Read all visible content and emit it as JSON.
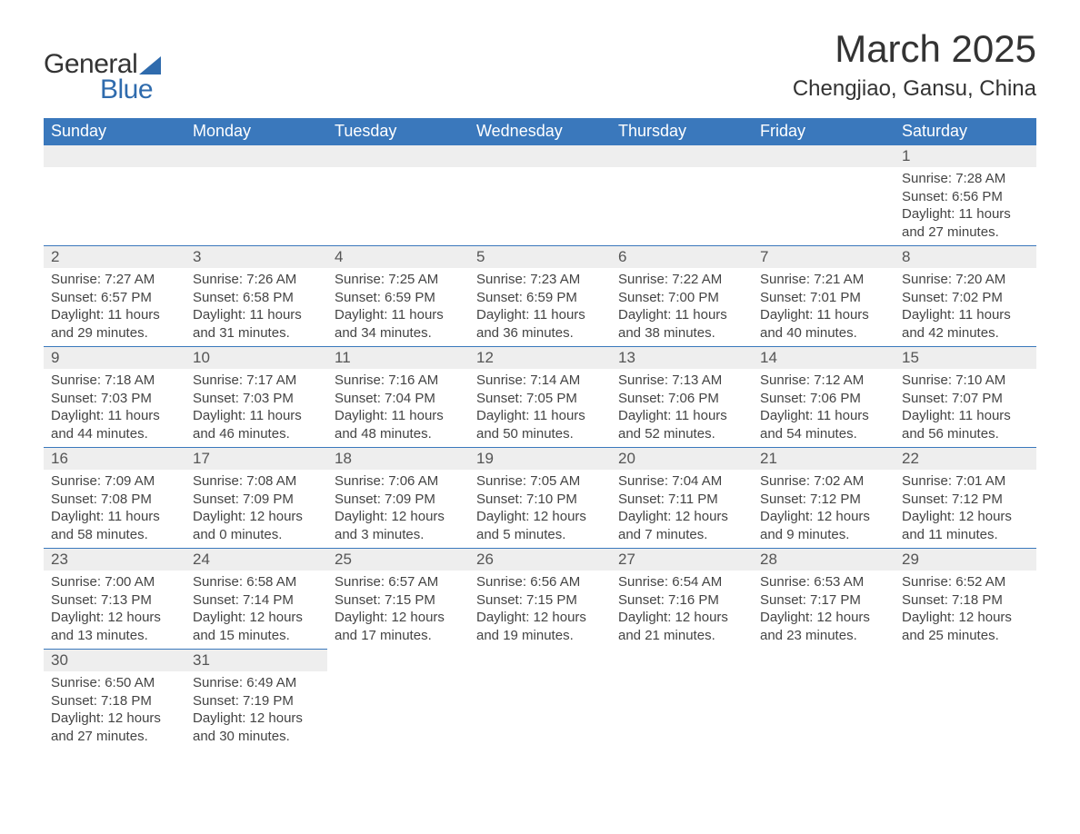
{
  "logo": {
    "word1": "General",
    "word2": "Blue",
    "accent_color": "#2f6bad"
  },
  "title": "March 2025",
  "location": "Chengjiao, Gansu, China",
  "colors": {
    "header_bg": "#3a78bc",
    "header_text": "#ffffff",
    "daynum_bg": "#eeeeee",
    "text": "#444444",
    "border": "#3a78bc",
    "page_bg": "#ffffff"
  },
  "typography": {
    "title_fontsize": 42,
    "location_fontsize": 24,
    "header_fontsize": 18,
    "daynum_fontsize": 17,
    "body_fontsize": 15,
    "font_family": "Arial"
  },
  "layout": {
    "columns": 7,
    "rows": 6
  },
  "day_headers": [
    "Sunday",
    "Monday",
    "Tuesday",
    "Wednesday",
    "Thursday",
    "Friday",
    "Saturday"
  ],
  "weeks": [
    [
      {
        "blank": true
      },
      {
        "blank": true
      },
      {
        "blank": true
      },
      {
        "blank": true
      },
      {
        "blank": true
      },
      {
        "blank": true
      },
      {
        "day": "1",
        "sunrise": "Sunrise: 7:28 AM",
        "sunset": "Sunset: 6:56 PM",
        "daylight1": "Daylight: 11 hours",
        "daylight2": "and 27 minutes."
      }
    ],
    [
      {
        "day": "2",
        "sunrise": "Sunrise: 7:27 AM",
        "sunset": "Sunset: 6:57 PM",
        "daylight1": "Daylight: 11 hours",
        "daylight2": "and 29 minutes."
      },
      {
        "day": "3",
        "sunrise": "Sunrise: 7:26 AM",
        "sunset": "Sunset: 6:58 PM",
        "daylight1": "Daylight: 11 hours",
        "daylight2": "and 31 minutes."
      },
      {
        "day": "4",
        "sunrise": "Sunrise: 7:25 AM",
        "sunset": "Sunset: 6:59 PM",
        "daylight1": "Daylight: 11 hours",
        "daylight2": "and 34 minutes."
      },
      {
        "day": "5",
        "sunrise": "Sunrise: 7:23 AM",
        "sunset": "Sunset: 6:59 PM",
        "daylight1": "Daylight: 11 hours",
        "daylight2": "and 36 minutes."
      },
      {
        "day": "6",
        "sunrise": "Sunrise: 7:22 AM",
        "sunset": "Sunset: 7:00 PM",
        "daylight1": "Daylight: 11 hours",
        "daylight2": "and 38 minutes."
      },
      {
        "day": "7",
        "sunrise": "Sunrise: 7:21 AM",
        "sunset": "Sunset: 7:01 PM",
        "daylight1": "Daylight: 11 hours",
        "daylight2": "and 40 minutes."
      },
      {
        "day": "8",
        "sunrise": "Sunrise: 7:20 AM",
        "sunset": "Sunset: 7:02 PM",
        "daylight1": "Daylight: 11 hours",
        "daylight2": "and 42 minutes."
      }
    ],
    [
      {
        "day": "9",
        "sunrise": "Sunrise: 7:18 AM",
        "sunset": "Sunset: 7:03 PM",
        "daylight1": "Daylight: 11 hours",
        "daylight2": "and 44 minutes."
      },
      {
        "day": "10",
        "sunrise": "Sunrise: 7:17 AM",
        "sunset": "Sunset: 7:03 PM",
        "daylight1": "Daylight: 11 hours",
        "daylight2": "and 46 minutes."
      },
      {
        "day": "11",
        "sunrise": "Sunrise: 7:16 AM",
        "sunset": "Sunset: 7:04 PM",
        "daylight1": "Daylight: 11 hours",
        "daylight2": "and 48 minutes."
      },
      {
        "day": "12",
        "sunrise": "Sunrise: 7:14 AM",
        "sunset": "Sunset: 7:05 PM",
        "daylight1": "Daylight: 11 hours",
        "daylight2": "and 50 minutes."
      },
      {
        "day": "13",
        "sunrise": "Sunrise: 7:13 AM",
        "sunset": "Sunset: 7:06 PM",
        "daylight1": "Daylight: 11 hours",
        "daylight2": "and 52 minutes."
      },
      {
        "day": "14",
        "sunrise": "Sunrise: 7:12 AM",
        "sunset": "Sunset: 7:06 PM",
        "daylight1": "Daylight: 11 hours",
        "daylight2": "and 54 minutes."
      },
      {
        "day": "15",
        "sunrise": "Sunrise: 7:10 AM",
        "sunset": "Sunset: 7:07 PM",
        "daylight1": "Daylight: 11 hours",
        "daylight2": "and 56 minutes."
      }
    ],
    [
      {
        "day": "16",
        "sunrise": "Sunrise: 7:09 AM",
        "sunset": "Sunset: 7:08 PM",
        "daylight1": "Daylight: 11 hours",
        "daylight2": "and 58 minutes."
      },
      {
        "day": "17",
        "sunrise": "Sunrise: 7:08 AM",
        "sunset": "Sunset: 7:09 PM",
        "daylight1": "Daylight: 12 hours",
        "daylight2": "and 0 minutes."
      },
      {
        "day": "18",
        "sunrise": "Sunrise: 7:06 AM",
        "sunset": "Sunset: 7:09 PM",
        "daylight1": "Daylight: 12 hours",
        "daylight2": "and 3 minutes."
      },
      {
        "day": "19",
        "sunrise": "Sunrise: 7:05 AM",
        "sunset": "Sunset: 7:10 PM",
        "daylight1": "Daylight: 12 hours",
        "daylight2": "and 5 minutes."
      },
      {
        "day": "20",
        "sunrise": "Sunrise: 7:04 AM",
        "sunset": "Sunset: 7:11 PM",
        "daylight1": "Daylight: 12 hours",
        "daylight2": "and 7 minutes."
      },
      {
        "day": "21",
        "sunrise": "Sunrise: 7:02 AM",
        "sunset": "Sunset: 7:12 PM",
        "daylight1": "Daylight: 12 hours",
        "daylight2": "and 9 minutes."
      },
      {
        "day": "22",
        "sunrise": "Sunrise: 7:01 AM",
        "sunset": "Sunset: 7:12 PM",
        "daylight1": "Daylight: 12 hours",
        "daylight2": "and 11 minutes."
      }
    ],
    [
      {
        "day": "23",
        "sunrise": "Sunrise: 7:00 AM",
        "sunset": "Sunset: 7:13 PM",
        "daylight1": "Daylight: 12 hours",
        "daylight2": "and 13 minutes."
      },
      {
        "day": "24",
        "sunrise": "Sunrise: 6:58 AM",
        "sunset": "Sunset: 7:14 PM",
        "daylight1": "Daylight: 12 hours",
        "daylight2": "and 15 minutes."
      },
      {
        "day": "25",
        "sunrise": "Sunrise: 6:57 AM",
        "sunset": "Sunset: 7:15 PM",
        "daylight1": "Daylight: 12 hours",
        "daylight2": "and 17 minutes."
      },
      {
        "day": "26",
        "sunrise": "Sunrise: 6:56 AM",
        "sunset": "Sunset: 7:15 PM",
        "daylight1": "Daylight: 12 hours",
        "daylight2": "and 19 minutes."
      },
      {
        "day": "27",
        "sunrise": "Sunrise: 6:54 AM",
        "sunset": "Sunset: 7:16 PM",
        "daylight1": "Daylight: 12 hours",
        "daylight2": "and 21 minutes."
      },
      {
        "day": "28",
        "sunrise": "Sunrise: 6:53 AM",
        "sunset": "Sunset: 7:17 PM",
        "daylight1": "Daylight: 12 hours",
        "daylight2": "and 23 minutes."
      },
      {
        "day": "29",
        "sunrise": "Sunrise: 6:52 AM",
        "sunset": "Sunset: 7:18 PM",
        "daylight1": "Daylight: 12 hours",
        "daylight2": "and 25 minutes."
      }
    ],
    [
      {
        "day": "30",
        "sunrise": "Sunrise: 6:50 AM",
        "sunset": "Sunset: 7:18 PM",
        "daylight1": "Daylight: 12 hours",
        "daylight2": "and 27 minutes."
      },
      {
        "day": "31",
        "sunrise": "Sunrise: 6:49 AM",
        "sunset": "Sunset: 7:19 PM",
        "daylight1": "Daylight: 12 hours",
        "daylight2": "and 30 minutes."
      },
      {
        "blank": true
      },
      {
        "blank": true
      },
      {
        "blank": true
      },
      {
        "blank": true
      },
      {
        "blank": true
      }
    ]
  ]
}
